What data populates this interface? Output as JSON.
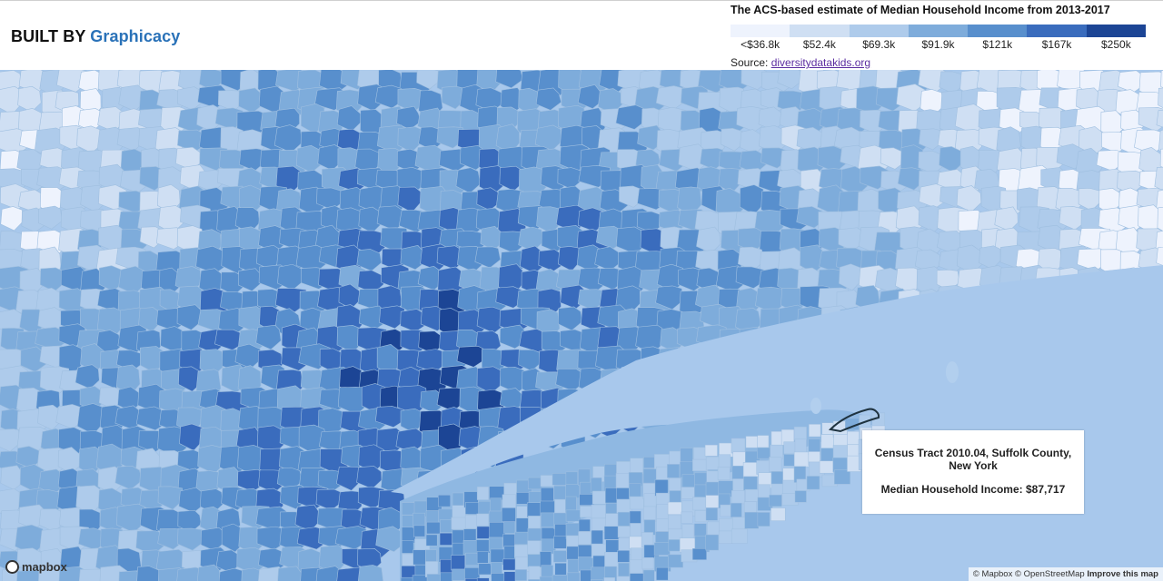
{
  "header": {
    "brand_prefix": "BUILT BY",
    "brand_name": "Graphicacy"
  },
  "legend": {
    "title": "The ACS-based estimate of Median Household Income from 2013-2017",
    "colors": [
      "#eef3fd",
      "#cfdff3",
      "#aecbeb",
      "#7eacdb",
      "#588fcd",
      "#3a6cbd",
      "#1c4595"
    ],
    "labels": [
      "<$36.8k",
      "$52.4k",
      "$69.3k",
      "$91.9k",
      "$121k",
      "$167k",
      "$250k"
    ],
    "source_label": "Source:",
    "source_link": "diversitydatakids.org"
  },
  "map": {
    "water_color": "#a8c8ec",
    "selected_tract_outline": "#1f3340"
  },
  "tooltip": {
    "tract": "Census Tract 2010.04, Suffolk County, New York",
    "value": "Median Household Income: $87,717"
  },
  "footer": {
    "logo": "mapbox",
    "attribution": "© Mapbox © OpenStreetMap",
    "improve": "Improve this map"
  }
}
